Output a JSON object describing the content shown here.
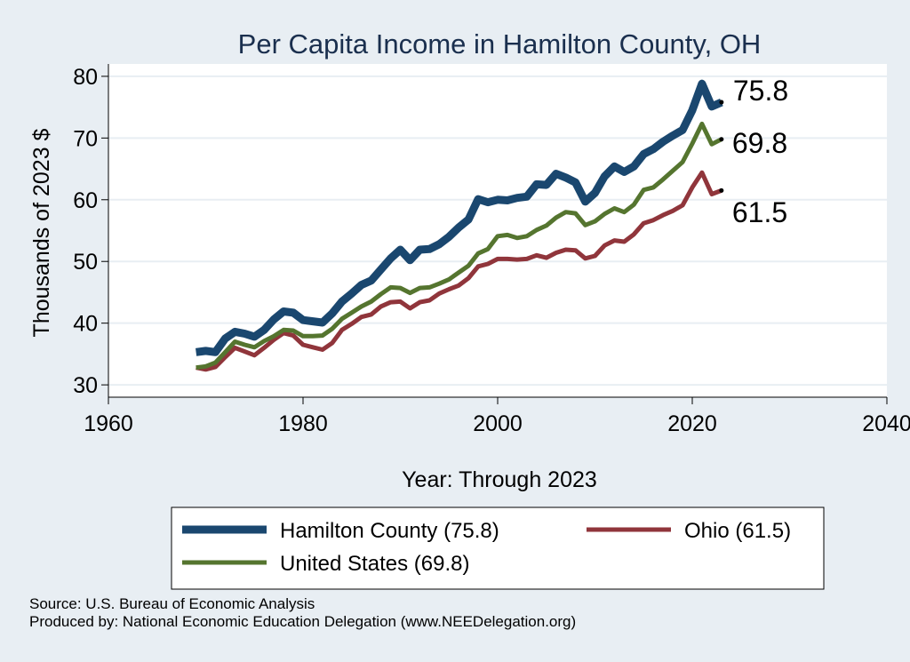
{
  "chart_data": {
    "type": "line",
    "title": "Per Capita Income in Hamilton County, OH",
    "xlabel": "Year: Through 2023",
    "ylabel": "Thousands of 2023 $",
    "xlim": [
      1960,
      2040
    ],
    "ylim": [
      28,
      82
    ],
    "xticks": [
      1960,
      1980,
      2000,
      2020,
      2040
    ],
    "yticks": [
      30,
      40,
      50,
      60,
      70,
      80
    ],
    "grid": true,
    "legend_position": "bottom",
    "x": [
      1969,
      1970,
      1971,
      1972,
      1973,
      1974,
      1975,
      1976,
      1977,
      1978,
      1979,
      1980,
      1981,
      1982,
      1983,
      1984,
      1985,
      1986,
      1987,
      1988,
      1989,
      1990,
      1991,
      1992,
      1993,
      1994,
      1995,
      1996,
      1997,
      1998,
      1999,
      2000,
      2001,
      2002,
      2003,
      2004,
      2005,
      2006,
      2007,
      2008,
      2009,
      2010,
      2011,
      2012,
      2013,
      2014,
      2015,
      2016,
      2017,
      2018,
      2019,
      2020,
      2021,
      2022,
      2023
    ],
    "series": [
      {
        "name": "Hamilton County",
        "legend_label": "Hamilton County (75.8)",
        "end_label": "75.8",
        "color": "#1a476f",
        "values": [
          35.3,
          35.5,
          35.3,
          37.5,
          38.6,
          38.3,
          37.8,
          38.9,
          40.6,
          41.9,
          41.7,
          40.5,
          40.3,
          40.1,
          41.6,
          43.5,
          44.8,
          46.2,
          46.9,
          48.7,
          50.5,
          51.9,
          50.2,
          51.9,
          52.0,
          52.8,
          54.0,
          55.5,
          56.8,
          60.1,
          59.6,
          60.0,
          59.9,
          60.3,
          60.5,
          62.5,
          62.4,
          64.2,
          63.6,
          62.8,
          59.7,
          61.1,
          63.8,
          65.4,
          64.5,
          65.4,
          67.4,
          68.2,
          69.4,
          70.4,
          71.3,
          74.5,
          78.8,
          75.1,
          75.8
        ]
      },
      {
        "name": "United States",
        "legend_label": "United States (69.8)",
        "end_label": "69.8",
        "color": "#55752f",
        "values": [
          32.8,
          33.0,
          33.6,
          35.3,
          37.0,
          36.5,
          36.1,
          37.1,
          37.9,
          38.9,
          38.8,
          37.9,
          37.9,
          38.0,
          39.1,
          40.7,
          41.7,
          42.7,
          43.5,
          44.7,
          45.8,
          45.7,
          44.9,
          45.7,
          45.8,
          46.4,
          47.1,
          48.2,
          49.3,
          51.3,
          52.0,
          54.1,
          54.3,
          53.8,
          54.1,
          55.1,
          55.8,
          57.1,
          58.0,
          57.8,
          55.9,
          56.5,
          57.7,
          58.6,
          58.0,
          59.2,
          61.6,
          62.0,
          63.3,
          64.7,
          66.1,
          69.1,
          72.3,
          69.0,
          69.8
        ]
      },
      {
        "name": "Ohio",
        "legend_label": "Ohio (61.5)",
        "end_label": "61.5",
        "color": "#90353b",
        "values": [
          32.8,
          32.5,
          32.9,
          34.5,
          36.0,
          35.4,
          34.8,
          36.0,
          37.3,
          38.4,
          38.0,
          36.5,
          36.1,
          35.7,
          36.8,
          38.9,
          39.9,
          41.0,
          41.4,
          42.7,
          43.4,
          43.5,
          42.4,
          43.4,
          43.7,
          44.8,
          45.5,
          46.1,
          47.3,
          49.2,
          49.6,
          50.4,
          50.4,
          50.3,
          50.4,
          51.0,
          50.6,
          51.4,
          51.9,
          51.8,
          50.5,
          50.9,
          52.6,
          53.4,
          53.2,
          54.4,
          56.2,
          56.7,
          57.5,
          58.2,
          59.1,
          62.0,
          64.4,
          60.9,
          61.5
        ]
      }
    ]
  },
  "footer": {
    "source": "Source: U.S. Bureau of Economic Analysis",
    "produced_by": "Produced by: National Economic Education Delegation (www.NEEDelegation.org)"
  }
}
